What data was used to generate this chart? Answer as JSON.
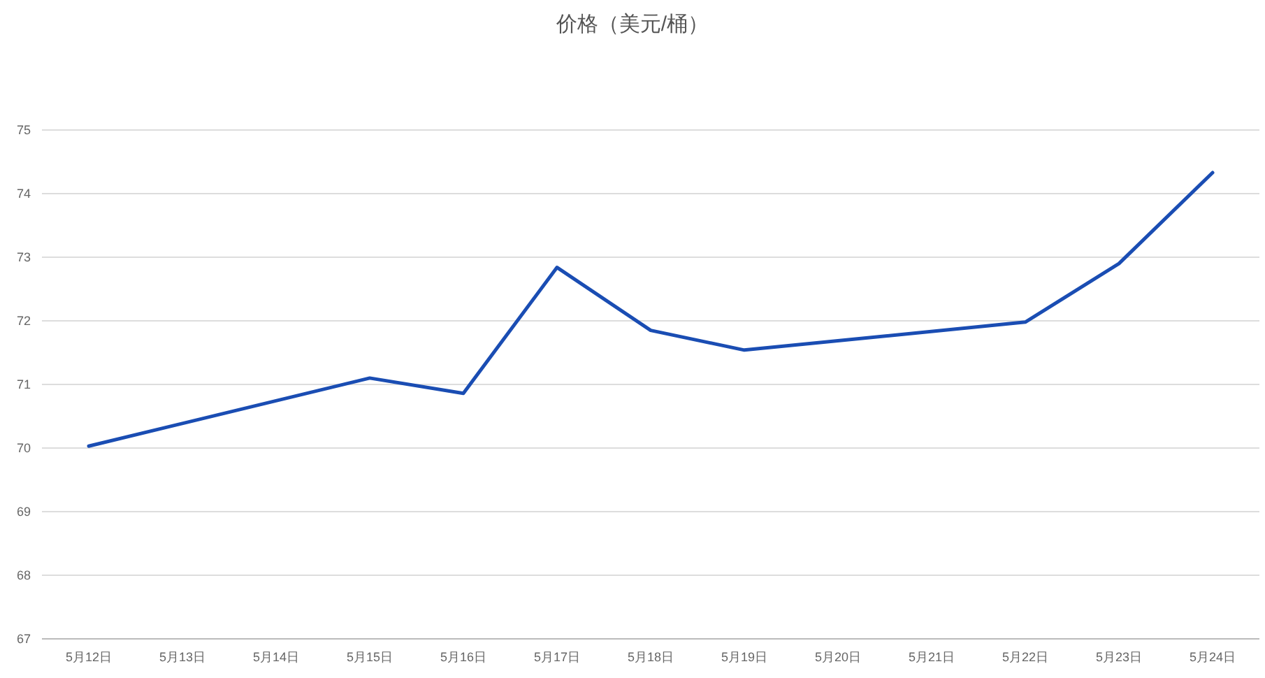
{
  "chart_data": {
    "type": "line",
    "title": "价格（美元/桶）",
    "categories": [
      "5月12日",
      "5月13日",
      "5月14日",
      "5月15日",
      "5月16日",
      "5月17日",
      "5月18日",
      "5月19日",
      "5月20日",
      "5月21日",
      "5月22日",
      "5月23日",
      "5月24日"
    ],
    "series": [
      {
        "color": "#1a4db3",
        "values": [
          70.03,
          null,
          null,
          71.1,
          70.86,
          72.84,
          71.85,
          71.54,
          null,
          null,
          71.98,
          72.9,
          74.33
        ]
      }
    ],
    "ylim": [
      67,
      75
    ],
    "yticks": [
      67,
      68,
      69,
      70,
      71,
      72,
      73,
      74,
      75
    ],
    "grid": "y",
    "marker": "none",
    "line_style": "solid"
  }
}
